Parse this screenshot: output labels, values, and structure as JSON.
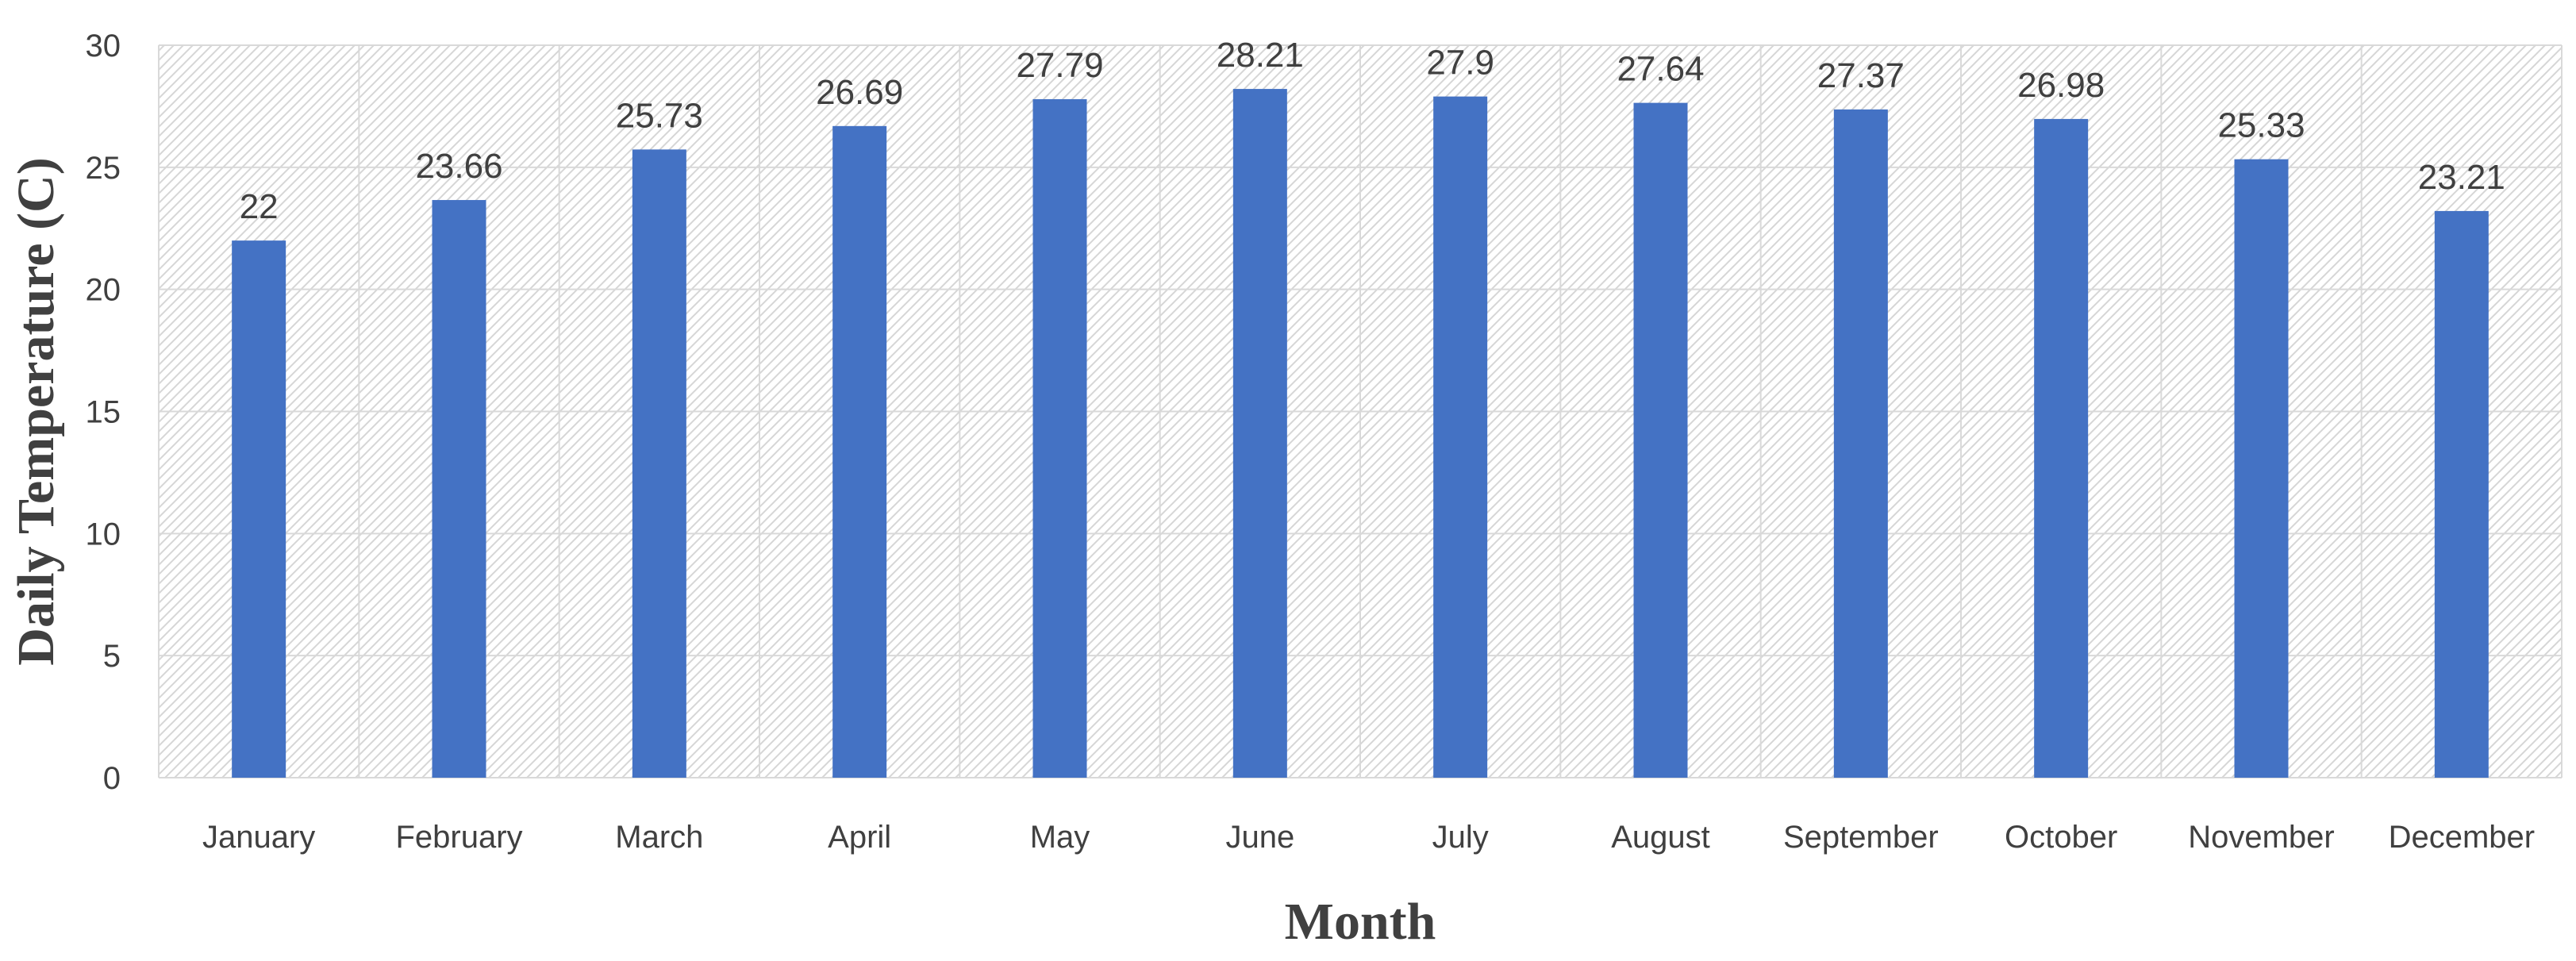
{
  "chart_data": {
    "type": "bar",
    "title": "",
    "xlabel": "Month",
    "ylabel": "Daily Temperature (C)",
    "ylim": [
      0,
      30
    ],
    "yticks": [
      "0",
      "5",
      "10",
      "15",
      "20",
      "25",
      "30"
    ],
    "categories": [
      "January",
      "February",
      "March",
      "April",
      "May",
      "June",
      "July",
      "August",
      "September",
      "October",
      "November",
      "December"
    ],
    "values": [
      22,
      23.66,
      25.73,
      26.69,
      27.79,
      28.21,
      27.9,
      27.64,
      27.37,
      26.98,
      25.33,
      23.21
    ],
    "data_labels": [
      "22",
      "23.66",
      "25.73",
      "26.69",
      "27.79",
      "28.21",
      "27.9",
      "27.64",
      "27.37",
      "26.98",
      "25.33",
      "23.21"
    ],
    "grid": true,
    "legend": "none",
    "colors": {
      "bar": "#4472C4",
      "grid": "#D9D9D9",
      "hatch": "#D6D6D6",
      "text": "#404040"
    }
  }
}
